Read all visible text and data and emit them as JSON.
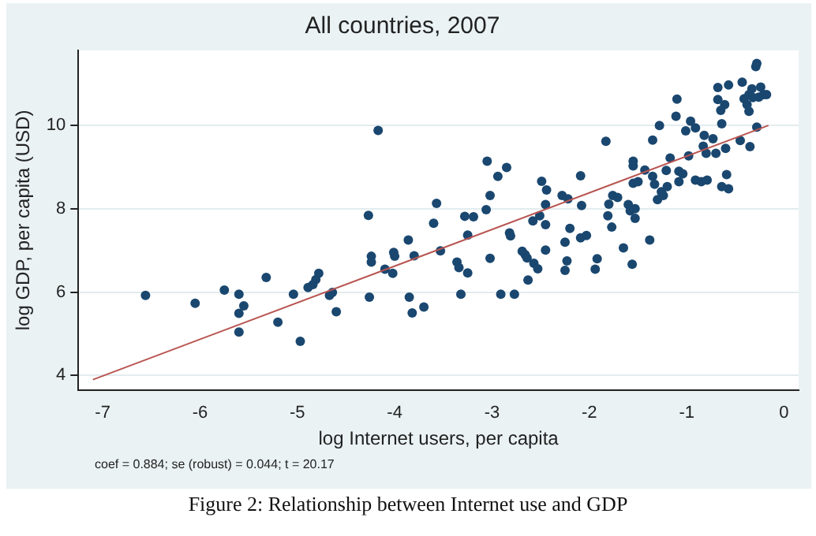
{
  "chart_data": {
    "type": "scatter",
    "title": "All countries, 2007",
    "xlabel": "log Internet users, per capita",
    "ylabel": "log GDP, per capita (USD)",
    "xlim": [
      -7.25,
      0.15
    ],
    "xticks": [
      -7,
      -6,
      -5,
      -4,
      -3,
      -2,
      -1,
      0
    ],
    "ylim": [
      3.65,
      11.8
    ],
    "yticks": [
      4,
      6,
      8,
      10
    ],
    "grid": "y",
    "legend": false,
    "annotations": [
      "coef = 0.884; se (robust) = 0.044; t = 20.17",
      "Figure 2: Relationship between Internet use and GDP"
    ],
    "series": [
      {
        "marker": "circle",
        "color": "#1a476f",
        "x": [
          -6.56,
          -6.05,
          -5.75,
          -5.6,
          -5.6,
          -5.55,
          -5.6,
          -5.32,
          -5.2,
          -5.04,
          -4.97,
          -4.89,
          -4.84,
          -4.81,
          -4.78,
          -4.67,
          -4.64,
          -4.6,
          -4.26,
          -4.27,
          -4.24,
          -4.24,
          -4.17,
          -4.1,
          -4.02,
          -4.01,
          -4.0,
          -3.86,
          -3.85,
          -3.82,
          -3.8,
          -3.7,
          -3.6,
          -3.57,
          -3.53,
          -3.36,
          -3.34,
          -3.32,
          -3.28,
          -3.25,
          -3.25,
          -3.19,
          -3.06,
          -3.05,
          -3.02,
          -3.02,
          -2.94,
          -2.91,
          -2.85,
          -2.82,
          -2.81,
          -2.77,
          -2.69,
          -2.66,
          -2.64,
          -2.63,
          -2.58,
          -2.57,
          -2.53,
          -2.51,
          -2.49,
          -2.45,
          -2.45,
          -2.44,
          -2.45,
          -2.28,
          -2.25,
          -2.25,
          -2.23,
          -2.22,
          -2.2,
          -2.09,
          -2.08,
          -2.09,
          -2.03,
          -1.94,
          -1.92,
          -1.83,
          -1.81,
          -1.8,
          -1.76,
          -1.77,
          -1.71,
          -1.65,
          -1.6,
          -1.58,
          -1.56,
          -1.55,
          -1.55,
          -1.55,
          -1.53,
          -1.53,
          -1.5,
          -1.43,
          -1.38,
          -1.35,
          -1.35,
          -1.33,
          -1.3,
          -1.28,
          -1.26,
          -1.24,
          -1.21,
          -1.2,
          -1.17,
          -1.11,
          -1.1,
          -1.08,
          -1.08,
          -1.04,
          -1.01,
          -0.98,
          -0.96,
          -0.91,
          -0.91,
          -0.85,
          -0.83,
          -0.8,
          -0.79,
          -0.82,
          -0.73,
          -0.7,
          -0.68,
          -0.68,
          -0.65,
          -0.64,
          -0.64,
          -0.61,
          -0.6,
          -0.59,
          -0.57,
          -0.57,
          -0.45,
          -0.43,
          -0.41,
          -0.38,
          -0.36,
          -0.35,
          -0.33,
          -0.32,
          -0.29,
          -0.28,
          -0.28,
          -0.26,
          -0.24,
          -0.21,
          -0.18,
          -0.36
        ],
        "values": [
          5.92,
          5.73,
          6.05,
          5.95,
          5.49,
          5.67,
          5.04,
          6.35,
          5.28,
          5.95,
          4.82,
          6.11,
          6.18,
          6.3,
          6.45,
          5.92,
          5.99,
          5.53,
          5.88,
          7.84,
          6.86,
          6.72,
          9.88,
          6.55,
          6.45,
          6.95,
          6.86,
          7.25,
          5.88,
          5.5,
          6.87,
          5.64,
          7.65,
          8.13,
          6.99,
          6.72,
          6.59,
          5.95,
          7.82,
          6.46,
          7.37,
          7.81,
          7.98,
          9.14,
          8.32,
          6.81,
          8.78,
          5.95,
          8.99,
          7.42,
          7.35,
          5.95,
          6.98,
          6.9,
          6.82,
          6.29,
          7.71,
          6.69,
          6.56,
          7.83,
          8.66,
          7.62,
          8.1,
          8.45,
          7.01,
          8.32,
          6.52,
          7.2,
          6.75,
          8.24,
          7.53,
          8.79,
          8.08,
          7.3,
          7.36,
          6.55,
          6.8,
          9.62,
          7.83,
          8.11,
          8.32,
          7.56,
          8.27,
          7.06,
          8.1,
          7.95,
          6.67,
          9.03,
          9.14,
          8.61,
          7.77,
          8.0,
          8.65,
          8.93,
          7.25,
          8.78,
          9.65,
          8.59,
          8.22,
          10.0,
          8.41,
          8.32,
          8.92,
          8.53,
          9.22,
          10.22,
          10.63,
          8.9,
          8.65,
          8.84,
          9.87,
          9.27,
          10.1,
          9.94,
          8.69,
          8.65,
          9.5,
          9.33,
          8.69,
          9.76,
          9.68,
          9.33,
          10.91,
          10.62,
          10.36,
          10.04,
          8.53,
          10.5,
          9.45,
          8.82,
          8.48,
          10.97,
          9.64,
          11.04,
          10.64,
          10.5,
          10.34,
          9.49,
          10.88,
          10.67,
          11.41,
          11.49,
          9.96,
          10.68,
          10.92,
          10.74,
          10.74,
          10.74
        ]
      },
      {
        "type": "line",
        "marker": "none",
        "color": "#b85450",
        "x": [
          -7.1,
          -0.16
        ],
        "values": [
          3.9,
          10.0
        ]
      }
    ]
  }
}
